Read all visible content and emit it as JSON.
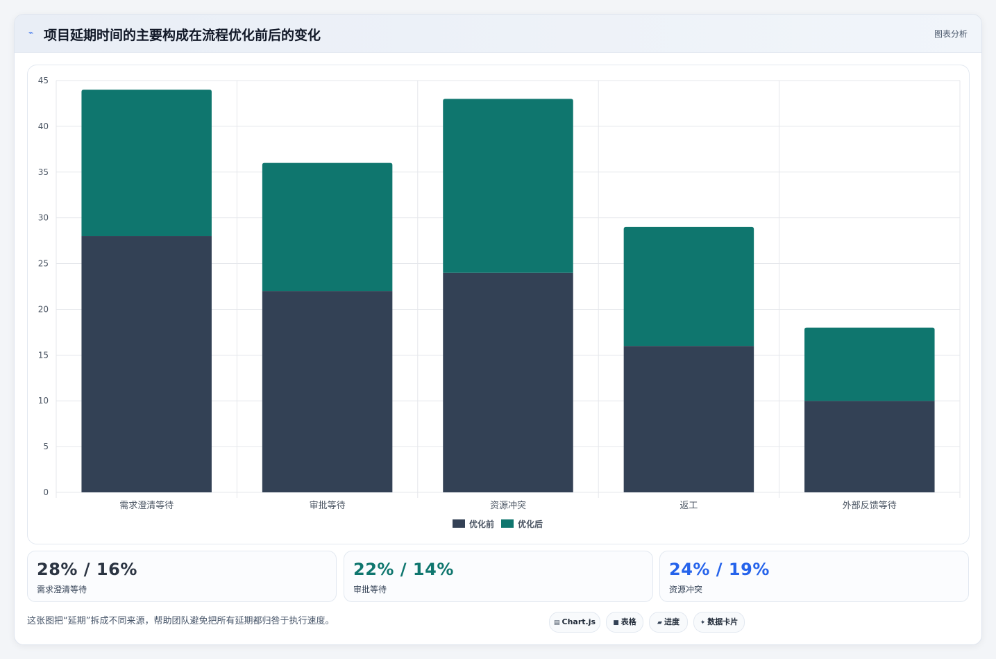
{
  "header": {
    "title": "项目延期时间的主要构成在流程优化前后的变化",
    "tag": "图表分析",
    "icon": "trend-icon"
  },
  "colors": {
    "before": "#334155",
    "after": "#0f766e",
    "accent_blue": "#2563eb",
    "grid": "#e5e7eb"
  },
  "chart_data": {
    "type": "bar",
    "stacked": true,
    "categories": [
      "需求澄清等待",
      "审批等待",
      "资源冲突",
      "返工",
      "外部反馈等待"
    ],
    "series": [
      {
        "name": "优化前",
        "values": [
          28,
          22,
          24,
          16,
          10
        ],
        "color": "#334155"
      },
      {
        "name": "优化后",
        "values": [
          16,
          14,
          19,
          13,
          8
        ],
        "color": "#0f766e"
      }
    ],
    "ylim": [
      0,
      45
    ],
    "yticks": [
      0,
      5,
      10,
      15,
      20,
      25,
      30,
      35,
      40,
      45
    ],
    "grid": true,
    "legend": "bottom-center"
  },
  "stats": [
    {
      "value": "28% / 16%",
      "label": "需求澄清等待",
      "color": "#2b3442"
    },
    {
      "value": "22% / 14%",
      "label": "审批等待",
      "color": "#0f766e"
    },
    {
      "value": "24% / 19%",
      "label": "资源冲突",
      "color": "#2563eb"
    }
  ],
  "footnote": "这张图把“延期”拆成不同来源，帮助团队避免把所有延期都归咎于执行速度。",
  "chips": [
    {
      "label": "Chart.js",
      "icon": "chart-icon"
    },
    {
      "label": "表格",
      "icon": "table-icon"
    },
    {
      "label": "进度",
      "icon": "progress-icon"
    },
    {
      "label": "数据卡片",
      "icon": "sparkle-icon"
    }
  ]
}
